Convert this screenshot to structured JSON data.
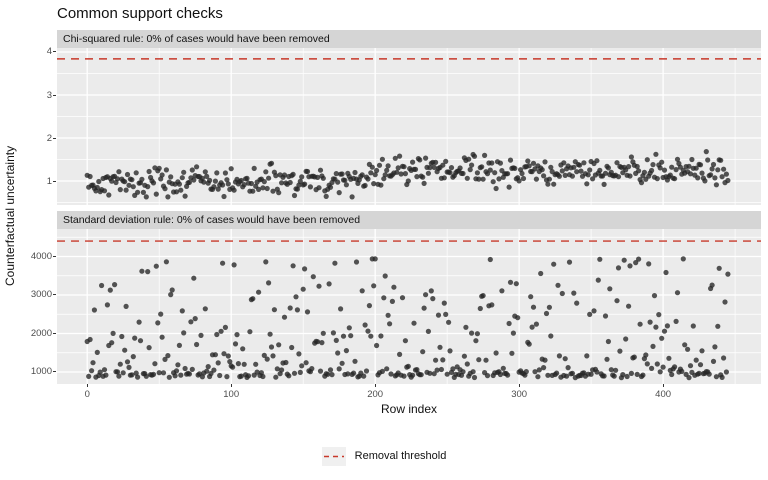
{
  "chart_data": {
    "type": "scatter",
    "title": "Common support checks",
    "xlabel": "Row index",
    "ylabel": "Counterfactual uncertainty",
    "legend": {
      "label": "Removal threshold",
      "style": "dashed-line",
      "position": "bottom"
    },
    "facets": "2 stacked panels sharing the x axis",
    "x": {
      "lim": [
        -21,
        468
      ],
      "ticks": [
        0,
        100,
        200,
        300,
        400
      ],
      "tick_labels": [
        "0",
        "100",
        "200",
        "300",
        "400"
      ],
      "minor": [
        50,
        150,
        250,
        350,
        450
      ],
      "n_points": 446,
      "x_values": "row index 0..445"
    },
    "panels": [
      {
        "strip_label": "Chi-squared rule: 0% of cases would have been removed",
        "threshold": 3.84,
        "ylim": [
          0.442,
          4.093
        ],
        "y_ticks": [
          1,
          2,
          3,
          4
        ],
        "y_tick_labels": [
          "1",
          "2",
          "3",
          "4"
        ],
        "y_minor": [
          0.5,
          1.5,
          2.5,
          3.5
        ],
        "points_estimated_distribution": {
          "note": "446 overplotted dots; values estimated from pixels, not individually legible",
          "kind": "normal-around-shifting-baseline",
          "base_low": 0.97,
          "base_high": 1.24,
          "ramp_start": 175,
          "ramp_end": 215,
          "sd": 0.165,
          "min": 0.63,
          "max": 1.74
        }
      },
      {
        "strip_label": "Standard deviation rule: 0% of cases would have been removed",
        "threshold": 4400,
        "ylim": [
          688,
          4714
        ],
        "y_ticks": [
          1000,
          2000,
          3000,
          4000
        ],
        "y_tick_labels": [
          "1000",
          "2000",
          "3000",
          "4000"
        ],
        "y_minor": [
          1500,
          2500,
          3500,
          4500
        ],
        "points_estimated_distribution": {
          "note": "446 overplotted dots; right-skewed, dense floor near 850-950, sparse up to ~3900",
          "kind": "right-skewed",
          "floor": 845,
          "scale": 3120,
          "power": 3,
          "jitter": 130,
          "max": 3940
        }
      }
    ],
    "style": {
      "panel_background": "#ebebeb",
      "strip_background": "#d5d5d5",
      "grid_major": "#ffffff",
      "grid_minor": "#ffffff",
      "point_color": "#252525",
      "point_opacity": 0.78,
      "point_radius": 2.6,
      "threshold_color": "#c8392b",
      "tick_label_color": "#4d4d4d",
      "render_seed": 42
    }
  }
}
